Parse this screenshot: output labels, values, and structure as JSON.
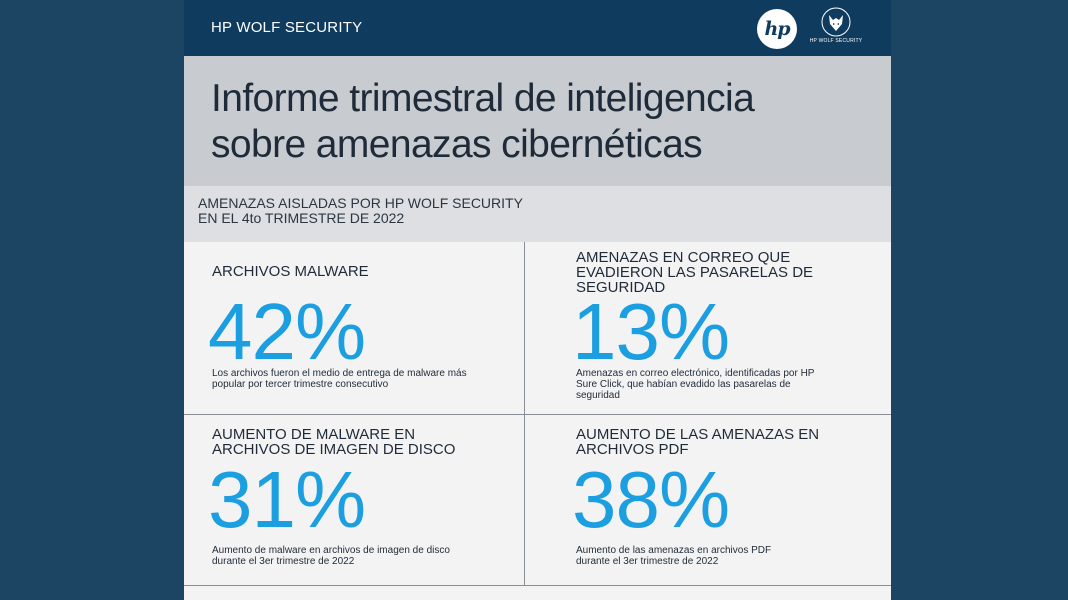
{
  "header": {
    "brand": "HP WOLF SECURITY",
    "hp_logo_text": "hp",
    "wolf_logo_caption": "HP WOLF SECURITY"
  },
  "title": {
    "line1": "Informe trimestral de inteligencia",
    "line2": "sobre amenazas cibernéticas"
  },
  "subtitle": {
    "line1": "AMENAZAS AISLADAS POR HP WOLF SECURITY",
    "line2": "EN EL 4to TRIMESTRE DE 2022"
  },
  "stats": [
    {
      "label": "ARCHIVOS MALWARE",
      "value": "42%",
      "description": "Los archivos fueron el medio de entrega de malware más popular por tercer trimestre consecutivo"
    },
    {
      "label": "AMENAZAS EN CORREO QUE EVADIERON LAS PASARELAS DE SEGURIDAD",
      "value": "13%",
      "description": "Amenazas en correo electrónico, identificadas por HP Sure Click, que habían evadido las pasarelas de seguridad"
    },
    {
      "label": "AUMENTO DE MALWARE EN ARCHIVOS DE IMAGEN DE DISCO",
      "value": "31%",
      "description": "Aumento de malware en archivos de imagen de disco durante el 3er trimestre de 2022"
    },
    {
      "label": "AUMENTO DE LAS AMENAZAS EN ARCHIVOS PDF",
      "value": "38%",
      "description": "Aumento de las amenazas en archivos PDF durante el 3er trimestre de 2022"
    }
  ],
  "colors": {
    "background": "#1c4564",
    "header": "#0f3b5e",
    "title_band": "#c8cbd0",
    "accent_value": "#1b9fe0"
  }
}
